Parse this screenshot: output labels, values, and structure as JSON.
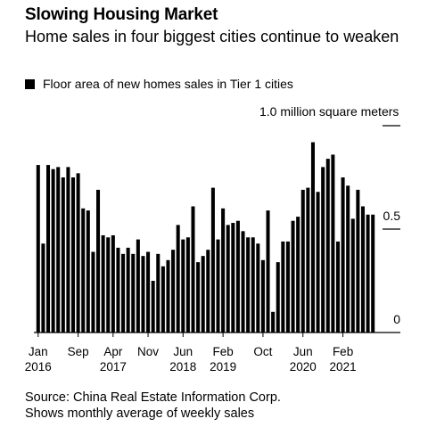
{
  "chart_data": {
    "type": "bar",
    "title": "Slowing Housing Market",
    "subtitle": "Home sales in four biggest cities continue to weaken",
    "legend": [
      {
        "label": "Floor area of new homes sales in Tier 1 cities",
        "color": "#000000"
      }
    ],
    "ylabel": "1.0 million square meters",
    "ylim": [
      0,
      1.0
    ],
    "y_ticks": [
      {
        "value": 1.0,
        "label": ""
      },
      {
        "value": 0.5,
        "label": "0.5"
      },
      {
        "value": 0.0,
        "label": "0"
      }
    ],
    "x_tick_labels": [
      {
        "index": 0,
        "line1": "Jan",
        "line2": "2016"
      },
      {
        "index": 8,
        "line1": "Sep",
        "line2": ""
      },
      {
        "index": 15,
        "line1": "Apr",
        "line2": "2017"
      },
      {
        "index": 22,
        "line1": "Nov",
        "line2": ""
      },
      {
        "index": 29,
        "line1": "Jun",
        "line2": "2018"
      },
      {
        "index": 37,
        "line1": "Feb",
        "line2": "2019"
      },
      {
        "index": 45,
        "line1": "Oct",
        "line2": ""
      },
      {
        "index": 53,
        "line1": "Jun",
        "line2": "2020"
      },
      {
        "index": 61,
        "line1": "Feb",
        "line2": "2021"
      }
    ],
    "categories": [
      "Jan 2016",
      "Feb 2016",
      "Mar 2016",
      "Apr 2016",
      "May 2016",
      "Jun 2016",
      "Jul 2016",
      "Aug 2016",
      "Sep 2016",
      "Oct 2016",
      "Nov 2016",
      "Dec 2016",
      "Jan 2017",
      "Feb 2017",
      "Mar 2017",
      "Apr 2017",
      "May 2017",
      "Jun 2017",
      "Jul 2017",
      "Aug 2017",
      "Sep 2017",
      "Oct 2017",
      "Nov 2017",
      "Dec 2017",
      "Jan 2018",
      "Feb 2018",
      "Mar 2018",
      "Apr 2018",
      "May 2018",
      "Jun 2018",
      "Jul 2018",
      "Aug 2018",
      "Sep 2018",
      "Oct 2018",
      "Nov 2018",
      "Dec 2018",
      "Jan 2019",
      "Feb 2019",
      "Mar 2019",
      "Apr 2019",
      "May 2019",
      "Jun 2019",
      "Jul 2019",
      "Aug 2019",
      "Sep 2019",
      "Oct 2019",
      "Nov 2019",
      "Dec 2019",
      "Jan 2020",
      "Feb 2020",
      "Mar 2020",
      "Apr 2020",
      "May 2020",
      "Jun 2020",
      "Jul 2020",
      "Aug 2020",
      "Sep 2020",
      "Oct 2020",
      "Nov 2020",
      "Dec 2020",
      "Jan 2021",
      "Feb 2021",
      "Mar 2021",
      "Apr 2021",
      "May 2021",
      "Jun 2021",
      "Jul 2021",
      "Aug 2021"
    ],
    "values": [
      0.81,
      0.43,
      0.81,
      0.79,
      0.8,
      0.75,
      0.8,
      0.75,
      0.77,
      0.6,
      0.59,
      0.39,
      0.69,
      0.47,
      0.46,
      0.47,
      0.41,
      0.38,
      0.41,
      0.38,
      0.45,
      0.37,
      0.39,
      0.25,
      0.38,
      0.32,
      0.35,
      0.4,
      0.52,
      0.45,
      0.46,
      0.61,
      0.34,
      0.37,
      0.4,
      0.7,
      0.45,
      0.6,
      0.52,
      0.53,
      0.54,
      0.49,
      0.46,
      0.46,
      0.43,
      0.35,
      0.59,
      0.1,
      0.34,
      0.44,
      0.44,
      0.54,
      0.56,
      0.69,
      0.7,
      0.92,
      0.68,
      0.8,
      0.84,
      0.86,
      0.44,
      0.75,
      0.71,
      0.55,
      0.69,
      0.61,
      0.57,
      0.57
    ]
  },
  "footer": {
    "source": "Source: China Real Estate Information Corp.",
    "note": "Shows monthly average of weekly sales"
  }
}
